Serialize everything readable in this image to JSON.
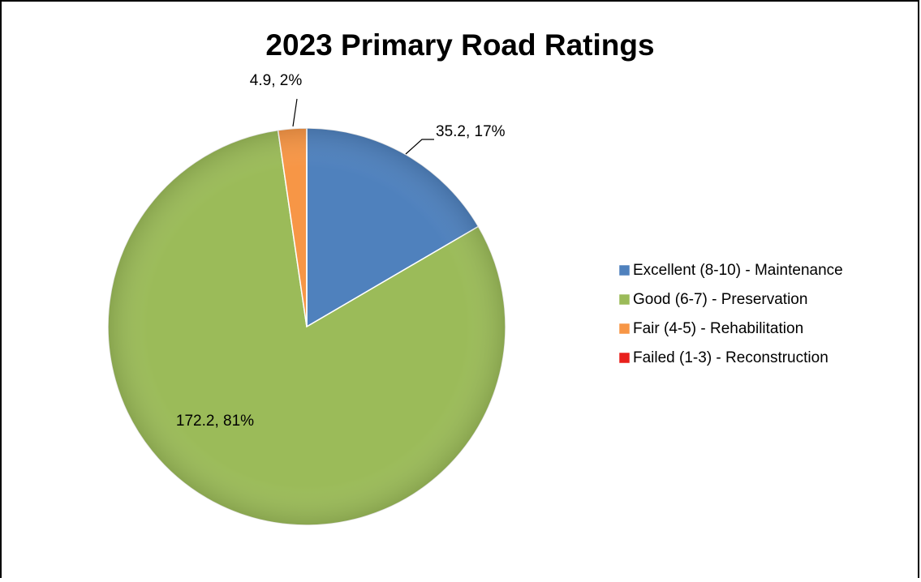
{
  "chart_data": {
    "type": "pie",
    "title": "2023 Primary Road Ratings",
    "categories": [
      "Excellent (8-10) - Maintenance",
      "Good (6-7) - Preservation",
      "Fair (4-5) - Rehabilitation",
      "Failed (1-3) - Reconstruction"
    ],
    "values": [
      35.2,
      172.2,
      4.9,
      0
    ],
    "value_labels": [
      "35.2, 17%",
      "172.2, 81%",
      "4.9, 2%",
      null
    ],
    "colors": [
      "#4f81bd",
      "#9bbb59",
      "#f79646",
      "#e8201c"
    ],
    "legend": "right"
  }
}
